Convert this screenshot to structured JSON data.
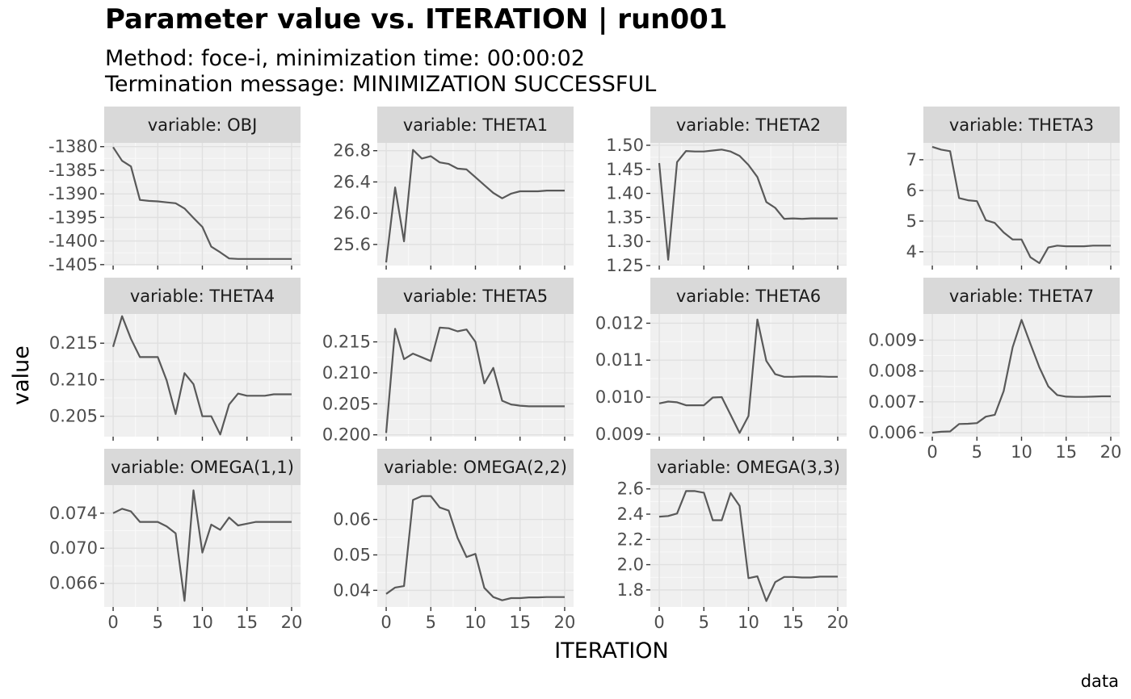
{
  "title": "Parameter value vs. ITERATION | run001",
  "subtitle_line1": "Method: foce-i, minimization time: 00:00:02",
  "subtitle_line2": "Termination message: MINIMIZATION SUCCESSFUL",
  "caption": "data",
  "chart_data": {
    "type": "line",
    "xlabel": "ITERATION",
    "ylabel": "value",
    "grid": true,
    "line_color": "#595959",
    "panel_background": "#f0f0f0",
    "strip_background": "#d9d9d9",
    "xlim": [
      -1,
      21
    ],
    "x_ticks": [
      0,
      5,
      10,
      15,
      20
    ],
    "x": [
      0,
      1,
      2,
      3,
      4,
      5,
      6,
      7,
      8,
      9,
      10,
      11,
      12,
      13,
      14,
      15,
      16,
      17,
      18,
      19,
      20
    ],
    "panels": [
      {
        "strip": "variable: OBJ",
        "ylim": [
          -1405.2,
          -1379.2
        ],
        "y_ticks": [
          -1380,
          -1385,
          -1390,
          -1395,
          -1400,
          -1405
        ],
        "y_tick_labels": [
          "-1380",
          "-1385",
          "-1390",
          "-1395",
          "-1400",
          "-1405"
        ],
        "values": [
          -1380.1,
          -1383,
          -1384.2,
          -1391.3,
          -1391.5,
          -1391.6,
          -1391.8,
          -1392,
          -1393.1,
          -1395.1,
          -1397,
          -1401.2,
          -1402.4,
          -1403.7,
          -1403.8,
          -1403.8,
          -1403.8,
          -1403.8,
          -1403.8,
          -1403.8,
          -1403.8
        ]
      },
      {
        "strip": "variable: THETA1",
        "ylim": [
          25.33,
          26.9
        ],
        "y_ticks": [
          25.6,
          26.0,
          26.4,
          26.8
        ],
        "y_tick_labels": [
          "25.6",
          "26.0",
          "26.4",
          "26.8"
        ],
        "values": [
          25.37,
          26.33,
          25.64,
          26.81,
          26.7,
          26.73,
          26.65,
          26.63,
          26.57,
          26.56,
          26.46,
          26.36,
          26.26,
          26.19,
          26.25,
          26.28,
          26.28,
          26.28,
          26.29,
          26.29,
          26.29
        ]
      },
      {
        "strip": "variable: THETA2",
        "ylim": [
          1.25,
          1.505
        ],
        "y_ticks": [
          1.25,
          1.3,
          1.35,
          1.4,
          1.45,
          1.5
        ],
        "y_tick_labels": [
          "1.25",
          "1.30",
          "1.35",
          "1.40",
          "1.45",
          "1.50"
        ],
        "values": [
          1.463,
          1.262,
          1.465,
          1.488,
          1.487,
          1.487,
          1.489,
          1.491,
          1.487,
          1.478,
          1.459,
          1.434,
          1.382,
          1.37,
          1.347,
          1.348,
          1.347,
          1.348,
          1.348,
          1.348,
          1.348
        ]
      },
      {
        "strip": "variable: THETA3",
        "ylim": [
          3.55,
          7.55
        ],
        "y_ticks": [
          4,
          5,
          6,
          7
        ],
        "y_tick_labels": [
          "4",
          "5",
          "6",
          "7"
        ],
        "values": [
          7.42,
          7.33,
          7.28,
          5.75,
          5.68,
          5.65,
          5.03,
          4.94,
          4.63,
          4.4,
          4.4,
          3.82,
          3.63,
          4.14,
          4.2,
          4.18,
          4.18,
          4.18,
          4.2,
          4.2,
          4.2
        ]
      },
      {
        "strip": "variable: THETA4",
        "ylim": [
          0.2022,
          0.219
        ],
        "y_ticks": [
          0.205,
          0.21,
          0.215
        ],
        "y_tick_labels": [
          "0.205",
          "0.210",
          "0.215"
        ],
        "values": [
          0.2145,
          0.2187,
          0.2156,
          0.2131,
          0.2131,
          0.2131,
          0.2099,
          0.2053,
          0.2109,
          0.2094,
          0.205,
          0.205,
          0.2025,
          0.2066,
          0.2081,
          0.2078,
          0.2078,
          0.2078,
          0.208,
          0.208,
          0.208
        ]
      },
      {
        "strip": "variable: THETA5",
        "ylim": [
          0.1997,
          0.2195
        ],
        "y_ticks": [
          0.2,
          0.205,
          0.21,
          0.215
        ],
        "y_tick_labels": [
          "0.200",
          "0.205",
          "0.210",
          "0.215"
        ],
        "values": [
          0.2003,
          0.2171,
          0.2122,
          0.2131,
          0.2125,
          0.2119,
          0.2173,
          0.2172,
          0.2167,
          0.217,
          0.215,
          0.2083,
          0.2108,
          0.2055,
          0.2049,
          0.2047,
          0.2046,
          0.2046,
          0.2046,
          0.2046,
          0.2046
        ]
      },
      {
        "strip": "variable: THETA6",
        "ylim": [
          0.00893,
          0.01225
        ],
        "y_ticks": [
          0.009,
          0.01,
          0.011,
          0.012
        ],
        "y_tick_labels": [
          "0.009",
          "0.010",
          "0.011",
          "0.012"
        ],
        "values": [
          0.00983,
          0.00988,
          0.00986,
          0.00978,
          0.00978,
          0.00978,
          0.00999,
          0.01,
          0.00952,
          0.00903,
          0.00949,
          0.0121,
          0.01098,
          0.01062,
          0.01055,
          0.01055,
          0.01056,
          0.01056,
          0.01056,
          0.01055,
          0.01055
        ]
      },
      {
        "strip": "variable: THETA7",
        "ylim": [
          0.00587,
          0.00985
        ],
        "y_ticks": [
          0.006,
          0.007,
          0.008,
          0.009
        ],
        "y_tick_labels": [
          "0.006",
          "0.007",
          "0.008",
          "0.009"
        ],
        "values": [
          0.006,
          0.00603,
          0.00604,
          0.00628,
          0.00629,
          0.00631,
          0.00652,
          0.00658,
          0.00735,
          0.00877,
          0.00966,
          0.00888,
          0.00812,
          0.0075,
          0.00722,
          0.00717,
          0.00716,
          0.00716,
          0.00717,
          0.00718,
          0.00718
        ]
      },
      {
        "strip": "variable: OMEGA(1,1)",
        "ylim": [
          0.0633,
          0.0772
        ],
        "y_ticks": [
          0.066,
          0.07,
          0.074
        ],
        "y_tick_labels": [
          "0.066",
          "0.070",
          "0.074"
        ],
        "values": [
          0.074,
          0.0745,
          0.0742,
          0.073,
          0.073,
          0.073,
          0.0725,
          0.0717,
          0.064,
          0.0766,
          0.0695,
          0.0727,
          0.0721,
          0.0735,
          0.0726,
          0.0728,
          0.073,
          0.073,
          0.073,
          0.073,
          0.073
        ]
      },
      {
        "strip": "variable: OMEGA(2,2)",
        "ylim": [
          0.0353,
          0.0697
        ],
        "y_ticks": [
          0.04,
          0.05,
          0.06
        ],
        "y_tick_labels": [
          "0.04",
          "0.05",
          "0.06"
        ],
        "values": [
          0.039,
          0.0408,
          0.0412,
          0.0655,
          0.0666,
          0.0666,
          0.0634,
          0.0625,
          0.0548,
          0.0494,
          0.0503,
          0.0407,
          0.0381,
          0.0372,
          0.0378,
          0.0378,
          0.038,
          0.038,
          0.0381,
          0.0381,
          0.0381
        ]
      },
      {
        "strip": "variable: OMEGA(3,3)",
        "ylim": [
          1.665,
          2.63
        ],
        "y_ticks": [
          1.8,
          2.0,
          2.2,
          2.4,
          2.6
        ],
        "y_tick_labels": [
          "1.8",
          "2.0",
          "2.2",
          "2.4",
          "2.6"
        ],
        "values": [
          2.38,
          2.385,
          2.405,
          2.583,
          2.583,
          2.57,
          2.352,
          2.352,
          2.568,
          2.465,
          1.893,
          1.908,
          1.712,
          1.862,
          1.903,
          1.903,
          1.898,
          1.898,
          1.905,
          1.905,
          1.905
        ]
      }
    ]
  }
}
